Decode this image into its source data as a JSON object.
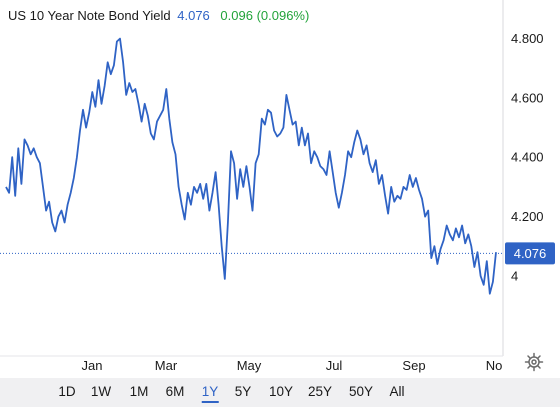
{
  "header": {
    "title": "US 10 Year Note Bond Yield",
    "price": "4.076",
    "change": "0.096 (0.096%)"
  },
  "price_tag": "4.076",
  "colors": {
    "line": "#2f63c5",
    "up": "#22a33a",
    "text": "#1a1a1a",
    "axis_bg": "#f0f0f2"
  },
  "ranges": [
    "1D",
    "1W",
    "1M",
    "6M",
    "1Y",
    "5Y",
    "10Y",
    "25Y",
    "50Y",
    "All"
  ],
  "active_range": "1Y",
  "settings_icon": "gear-icon",
  "chart_data": {
    "type": "line",
    "title": "US 10 Year Note Bond Yield",
    "xlabel": "",
    "ylabel": "",
    "x_tick_labels": [
      "Jan",
      "Mar",
      "May",
      "Jul",
      "Sep",
      "No"
    ],
    "y_tick_labels": [
      "4.800",
      "4.600",
      "4.400",
      "4.200",
      "4"
    ],
    "y_ticks": [
      4.8,
      4.6,
      4.4,
      4.2,
      4.0
    ],
    "ylim": [
      3.73,
      4.93
    ],
    "grid": false,
    "last_value": 4.076,
    "reference_line": 4.076,
    "series": [
      {
        "values": [
          4.3,
          4.28,
          4.4,
          4.27,
          4.43,
          4.31,
          4.46,
          4.44,
          4.41,
          4.43,
          4.4,
          4.38,
          4.3,
          4.22,
          4.25,
          4.18,
          4.15,
          4.2,
          4.22,
          4.18,
          4.24,
          4.28,
          4.33,
          4.4,
          4.49,
          4.56,
          4.5,
          4.55,
          4.62,
          4.57,
          4.66,
          4.58,
          4.64,
          4.72,
          4.68,
          4.71,
          4.79,
          4.8,
          4.72,
          4.61,
          4.65,
          4.62,
          4.63,
          4.58,
          4.52,
          4.58,
          4.54,
          4.48,
          4.46,
          4.52,
          4.54,
          4.56,
          4.63,
          4.53,
          4.45,
          4.41,
          4.3,
          4.24,
          4.19,
          4.28,
          4.24,
          4.3,
          4.28,
          4.31,
          4.26,
          4.31,
          4.22,
          4.28,
          4.35,
          4.24,
          4.1,
          3.99,
          4.18,
          4.42,
          4.38,
          4.26,
          4.36,
          4.3,
          4.37,
          4.3,
          4.22,
          4.38,
          4.41,
          4.53,
          4.51,
          4.56,
          4.55,
          4.49,
          4.47,
          4.48,
          4.5,
          4.61,
          4.56,
          4.51,
          4.52,
          4.44,
          4.5,
          4.44,
          4.48,
          4.38,
          4.42,
          4.4,
          4.37,
          4.36,
          4.34,
          4.42,
          4.35,
          4.28,
          4.23,
          4.28,
          4.34,
          4.42,
          4.4,
          4.45,
          4.49,
          4.46,
          4.41,
          4.44,
          4.38,
          4.35,
          4.39,
          4.31,
          4.34,
          4.27,
          4.21,
          4.3,
          4.25,
          4.27,
          4.26,
          4.3,
          4.29,
          4.34,
          4.3,
          4.33,
          4.29,
          4.26,
          4.2,
          4.22,
          4.06,
          4.1,
          4.04,
          4.09,
          4.12,
          4.17,
          4.14,
          4.12,
          4.16,
          4.13,
          4.17,
          4.11,
          4.14,
          4.1,
          4.03,
          4.08,
          4.0,
          3.97,
          4.05,
          3.94,
          3.98,
          4.08
        ]
      }
    ]
  }
}
